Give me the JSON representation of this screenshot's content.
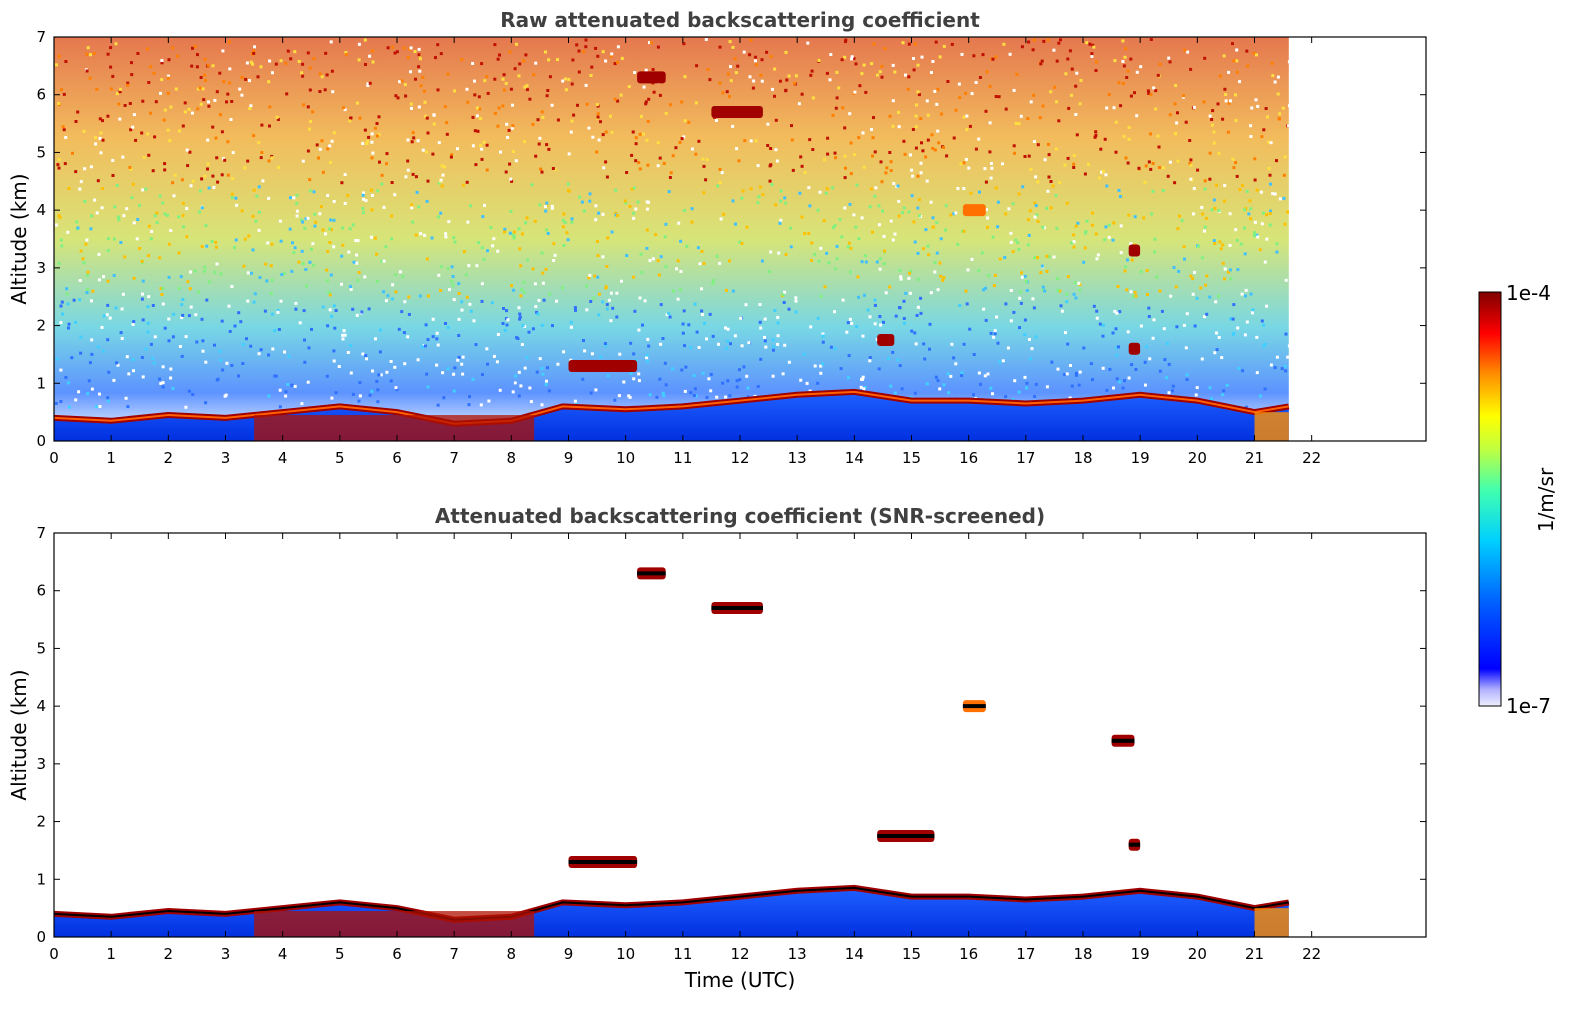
{
  "chart_data": [
    {
      "type": "heatmap",
      "title": "Raw attenuated backscattering coefficient",
      "xlabel": "",
      "ylabel": "Altitude (km)",
      "xlim": [
        0,
        24
      ],
      "ylim": [
        0,
        7
      ],
      "xticks": [
        "0",
        "1",
        "2",
        "3",
        "4",
        "5",
        "6",
        "7",
        "8",
        "9",
        "10",
        "11",
        "12",
        "13",
        "14",
        "15",
        "16",
        "17",
        "18",
        "19",
        "20",
        "21",
        "22"
      ],
      "yticks": [
        "0",
        "1",
        "2",
        "3",
        "4",
        "5",
        "6",
        "7"
      ],
      "data_extent_hours": [
        0,
        21.6
      ],
      "boundary_layer_top_km": [
        [
          0,
          0.4
        ],
        [
          1,
          0.35
        ],
        [
          2,
          0.45
        ],
        [
          3,
          0.4
        ],
        [
          4,
          0.5
        ],
        [
          5,
          0.6
        ],
        [
          6,
          0.5
        ],
        [
          7,
          0.3
        ],
        [
          8,
          0.35
        ],
        [
          8.9,
          0.6
        ],
        [
          10,
          0.55
        ],
        [
          11,
          0.6
        ],
        [
          12,
          0.7
        ],
        [
          13,
          0.8
        ],
        [
          14,
          0.85
        ],
        [
          15,
          0.7
        ],
        [
          16,
          0.7
        ],
        [
          17,
          0.65
        ],
        [
          18,
          0.7
        ],
        [
          19,
          0.8
        ],
        [
          20,
          0.7
        ],
        [
          21,
          0.5
        ],
        [
          21.6,
          0.6
        ]
      ],
      "cloud_features": [
        {
          "t0": 9.0,
          "t1": 10.2,
          "alt_km": 1.3
        },
        {
          "t0": 10.2,
          "t1": 10.7,
          "alt_km": 6.3
        },
        {
          "t0": 11.5,
          "t1": 12.4,
          "alt_km": 5.7
        },
        {
          "t0": 15.9,
          "t1": 16.3,
          "alt_km": 4.0
        },
        {
          "t0": 18.8,
          "t1": 19.0,
          "alt_km": 3.3
        },
        {
          "t0": 14.4,
          "t1": 14.7,
          "alt_km": 1.75
        },
        {
          "t0": 18.8,
          "t1": 19.0,
          "alt_km": 1.6
        }
      ]
    },
    {
      "type": "heatmap",
      "title": "Attenuated backscattering coefficient (SNR-screened)",
      "xlabel": "Time (UTC)",
      "ylabel": "Altitude (km)",
      "xlim": [
        0,
        24
      ],
      "ylim": [
        0,
        7
      ],
      "xticks": [
        "0",
        "1",
        "2",
        "3",
        "4",
        "5",
        "6",
        "7",
        "8",
        "9",
        "10",
        "11",
        "12",
        "13",
        "14",
        "15",
        "16",
        "17",
        "18",
        "19",
        "20",
        "21",
        "22"
      ],
      "yticks": [
        "0",
        "1",
        "2",
        "3",
        "4",
        "5",
        "6",
        "7"
      ],
      "data_extent_hours": [
        0,
        21.6
      ],
      "cloud_features": [
        {
          "t0": 9.0,
          "t1": 10.2,
          "alt_km": 1.3
        },
        {
          "t0": 10.2,
          "t1": 10.7,
          "alt_km": 6.3
        },
        {
          "t0": 11.5,
          "t1": 12.4,
          "alt_km": 5.7
        },
        {
          "t0": 15.9,
          "t1": 16.3,
          "alt_km": 4.0
        },
        {
          "t0": 18.5,
          "t1": 18.9,
          "alt_km": 3.4
        },
        {
          "t0": 14.4,
          "t1": 15.4,
          "alt_km": 1.75
        },
        {
          "t0": 18.8,
          "t1": 19.0,
          "alt_km": 1.6
        }
      ]
    }
  ],
  "colorbar": {
    "label": "1/m/sr",
    "max_label": "1e-4",
    "min_label": "1e-7",
    "colors": [
      "#f0f0ff",
      "#c8c8ff",
      "#9090ff",
      "#0000ff",
      "#0040ff",
      "#0090ff",
      "#00d0ff",
      "#40ffc0",
      "#a0ff60",
      "#ffff00",
      "#ffb000",
      "#ff6000",
      "#ff0000",
      "#c00000",
      "#800000"
    ]
  }
}
